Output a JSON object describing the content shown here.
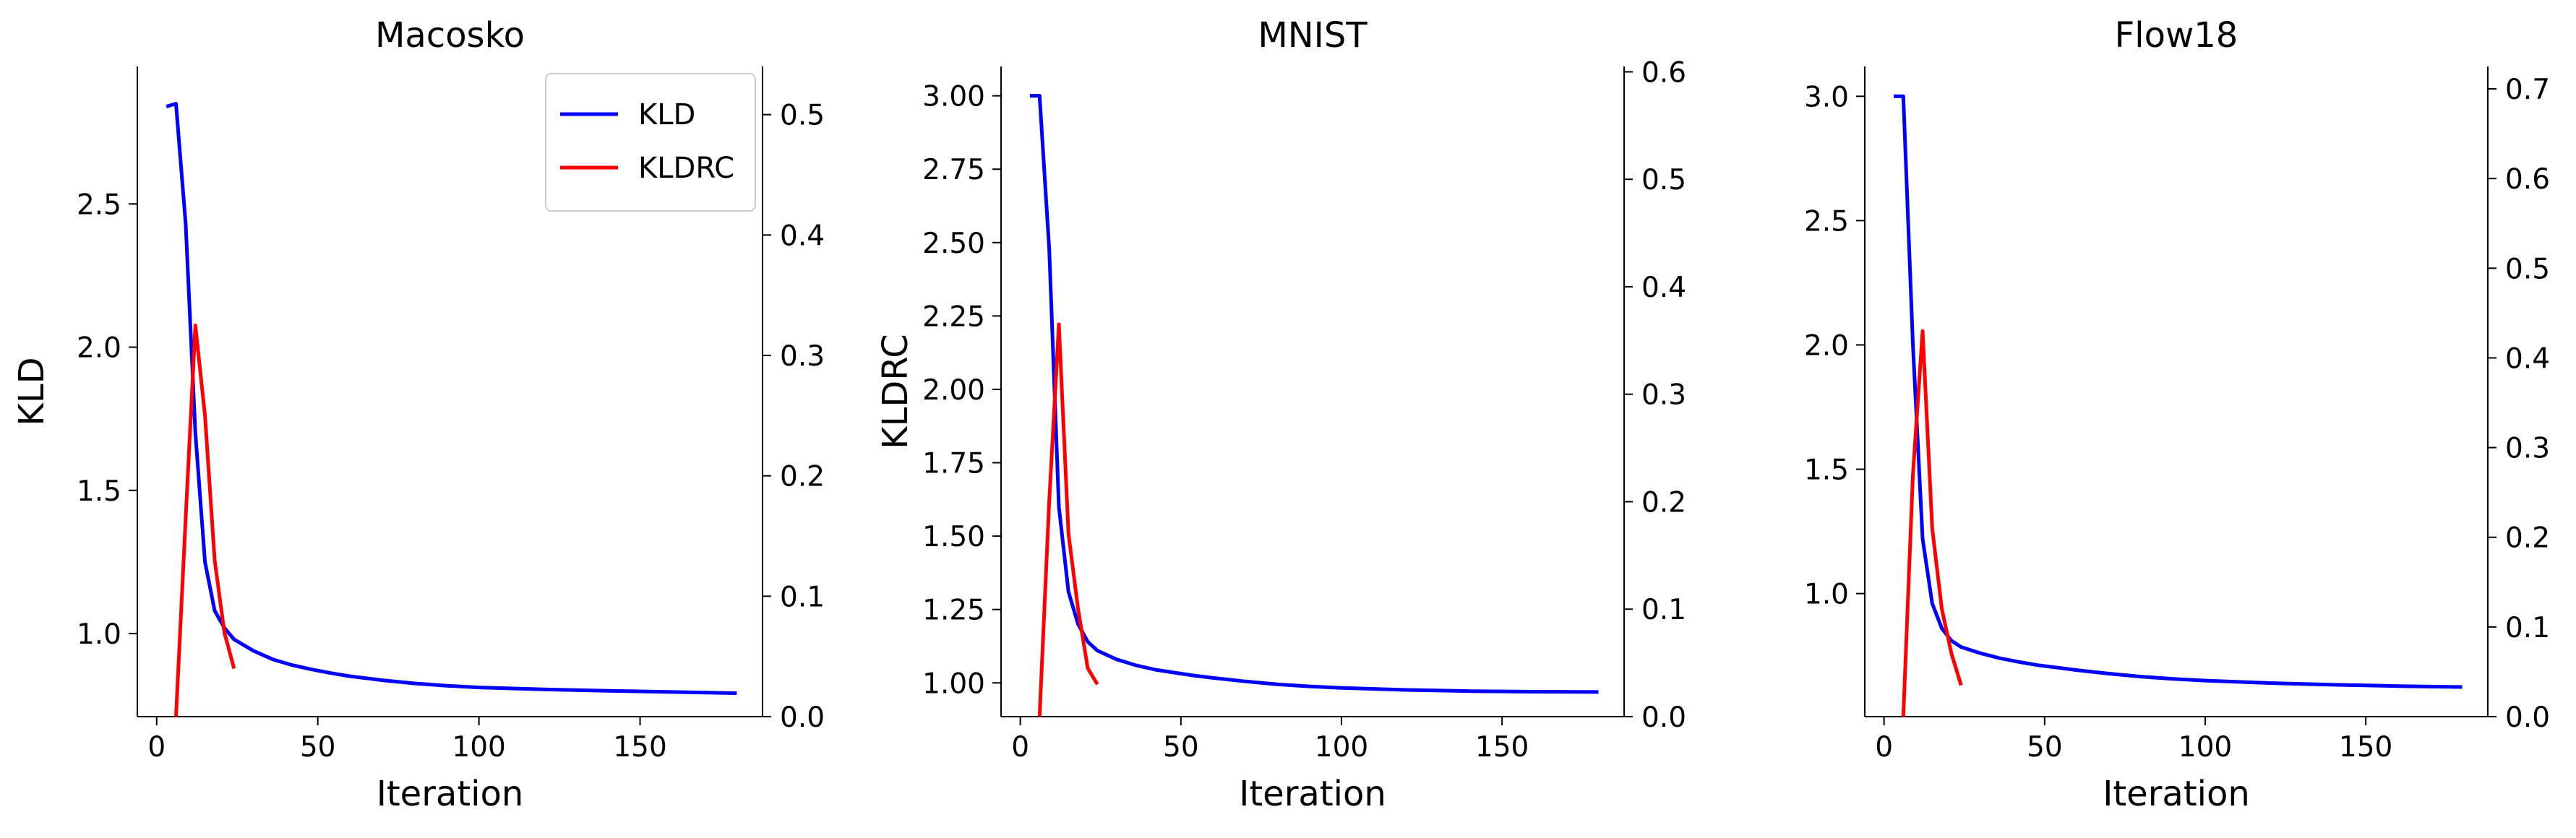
{
  "chart_data": [
    {
      "type": "line",
      "title": "Macosko",
      "xlabel": "Iteration",
      "ylabel": "KLD",
      "y2label": "",
      "xlim": [
        -6,
        188
      ],
      "xticks": [
        0,
        50,
        100,
        150
      ],
      "ylim": [
        0.71,
        2.98
      ],
      "yticks": [
        1.0,
        1.5,
        2.0,
        2.5
      ],
      "ytick_labels": [
        "1.0",
        "1.5",
        "2.0",
        "2.5"
      ],
      "y2lim": [
        0.0,
        0.54
      ],
      "y2ticks": [
        0.0,
        0.1,
        0.2,
        0.3,
        0.4,
        0.5
      ],
      "y2tick_labels": [
        "0.0",
        "0.1",
        "0.2",
        "0.3",
        "0.4",
        "0.5"
      ],
      "grid": false,
      "legend": "top-right",
      "series": [
        {
          "name": "KLD",
          "axis": "left",
          "color": "#0000ff",
          "x": [
            3,
            6,
            9,
            12,
            15,
            18,
            21,
            24,
            30,
            36,
            42,
            48,
            54,
            60,
            70,
            80,
            90,
            100,
            120,
            140,
            160,
            180
          ],
          "y": [
            2.84,
            2.85,
            2.43,
            1.7,
            1.25,
            1.08,
            1.02,
            0.98,
            0.94,
            0.91,
            0.89,
            0.875,
            0.862,
            0.851,
            0.837,
            0.826,
            0.818,
            0.812,
            0.805,
            0.8,
            0.796,
            0.792
          ]
        },
        {
          "name": "KLDRC",
          "axis": "right",
          "color": "#ff0000",
          "x": [
            6,
            9,
            12,
            15,
            18,
            21,
            24
          ],
          "y": [
            0.0,
            0.165,
            0.325,
            0.25,
            0.13,
            0.07,
            0.04
          ]
        }
      ]
    },
    {
      "type": "line",
      "title": "MNIST",
      "xlabel": "Iteration",
      "ylabel": "KLDRC",
      "y2label": "",
      "xlim": [
        -6,
        188
      ],
      "xticks": [
        0,
        50,
        100,
        150
      ],
      "ylim": [
        0.885,
        3.1
      ],
      "yticks": [
        1.0,
        1.25,
        1.5,
        1.75,
        2.0,
        2.25,
        2.5,
        2.75,
        3.0
      ],
      "ytick_labels": [
        "1.00",
        "1.25",
        "1.50",
        "1.75",
        "2.00",
        "2.25",
        "2.50",
        "2.75",
        "3.00"
      ],
      "y2lim": [
        0.0,
        0.605
      ],
      "y2ticks": [
        0.0,
        0.1,
        0.2,
        0.3,
        0.4,
        0.5,
        0.6
      ],
      "y2tick_labels": [
        "0.0",
        "0.1",
        "0.2",
        "0.3",
        "0.4",
        "0.5",
        "0.6"
      ],
      "grid": false,
      "legend": "none",
      "series": [
        {
          "name": "",
          "axis": "left",
          "color": "#0000ff",
          "x": [
            3,
            6,
            9,
            12,
            15,
            18,
            21,
            24,
            30,
            36,
            42,
            48,
            54,
            60,
            70,
            80,
            90,
            100,
            120,
            140,
            160,
            180
          ],
          "y": [
            3.0,
            3.0,
            2.48,
            1.6,
            1.31,
            1.2,
            1.14,
            1.11,
            1.08,
            1.06,
            1.045,
            1.035,
            1.025,
            1.017,
            1.005,
            0.995,
            0.988,
            0.983,
            0.976,
            0.972,
            0.97,
            0.969
          ]
        },
        {
          "name": "",
          "axis": "right",
          "color": "#ff0000",
          "x": [
            6,
            9,
            12,
            15,
            18,
            21,
            24
          ],
          "y": [
            0.0,
            0.2,
            0.365,
            0.17,
            0.1,
            0.045,
            0.03
          ]
        }
      ]
    },
    {
      "type": "line",
      "title": "Flow18",
      "xlabel": "Iteration",
      "ylabel": "",
      "y2label": "",
      "xlim": [
        -6,
        188
      ],
      "xticks": [
        0,
        50,
        100,
        150
      ],
      "ylim": [
        0.505,
        3.12
      ],
      "yticks": [
        1.0,
        1.5,
        2.0,
        2.5,
        3.0
      ],
      "ytick_labels": [
        "1.0",
        "1.5",
        "2.0",
        "2.5",
        "3.0"
      ],
      "y2lim": [
        0.0,
        0.725
      ],
      "y2ticks": [
        0.0,
        0.1,
        0.2,
        0.3,
        0.4,
        0.5,
        0.6,
        0.7
      ],
      "y2tick_labels": [
        "0.0",
        "0.1",
        "0.2",
        "0.3",
        "0.4",
        "0.5",
        "0.6",
        "0.7"
      ],
      "grid": false,
      "legend": "none",
      "series": [
        {
          "name": "",
          "axis": "left",
          "color": "#0000ff",
          "x": [
            3,
            6,
            9,
            12,
            15,
            18,
            21,
            24,
            30,
            36,
            42,
            48,
            54,
            60,
            70,
            80,
            90,
            100,
            120,
            140,
            160,
            180
          ],
          "y": [
            3.0,
            3.0,
            2.0,
            1.22,
            0.96,
            0.86,
            0.81,
            0.785,
            0.76,
            0.74,
            0.725,
            0.712,
            0.702,
            0.692,
            0.678,
            0.666,
            0.657,
            0.65,
            0.64,
            0.633,
            0.628,
            0.624
          ]
        },
        {
          "name": "",
          "axis": "right",
          "color": "#ff0000",
          "x": [
            6,
            9,
            12,
            15,
            18,
            21,
            24
          ],
          "y": [
            0.0,
            0.27,
            0.43,
            0.21,
            0.12,
            0.07,
            0.035
          ]
        }
      ]
    }
  ]
}
